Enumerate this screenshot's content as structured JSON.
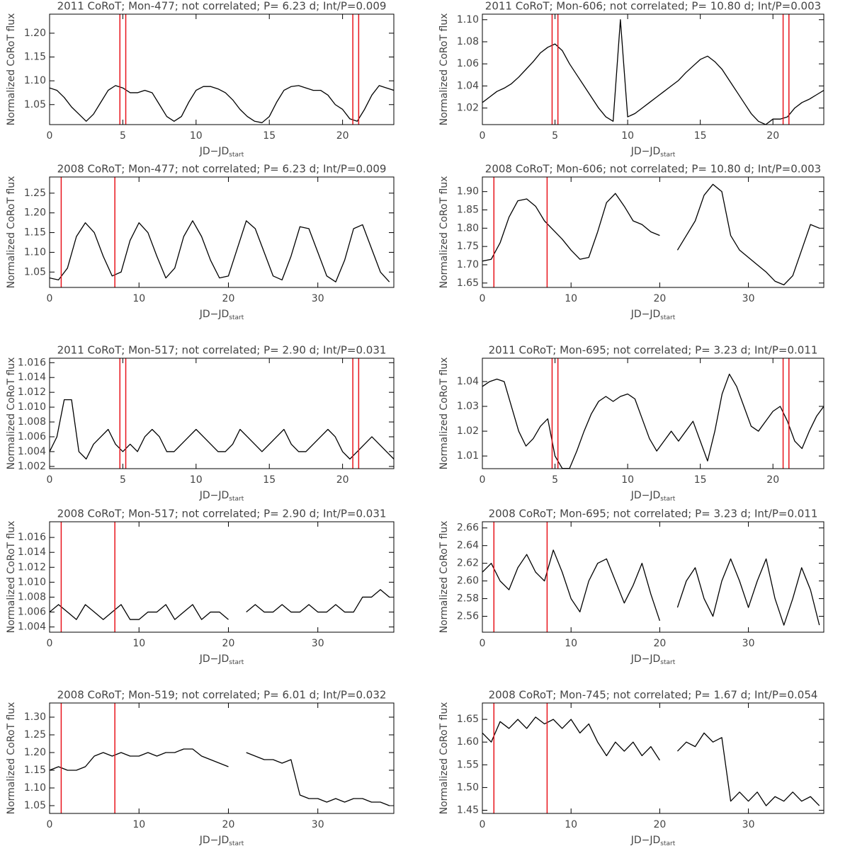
{
  "chart_data": [
    {
      "type": "line",
      "title": "2011 CoRoT; Mon-477; not correlated; P= 6.23 d; Int/P=0.009",
      "xlabel": "JD−JD",
      "xlabel_sub": "start",
      "ylabel": "Normalized CoRoT flux",
      "xlim": [
        0,
        23.5
      ],
      "ylim": [
        1.008,
        1.24
      ],
      "xticks": [
        0,
        5,
        10,
        15,
        20
      ],
      "yticks": [
        1.05,
        {
          "value": 1.1,
          "label": "1.10"
        },
        1.15,
        {
          "value": 1.2,
          "label": "1.20"
        }
      ],
      "vlines": [
        4.8,
        5.2,
        20.7,
        21.1
      ],
      "vline_color": "#e8141c",
      "color": "#000000",
      "x": [
        0,
        0.5,
        1,
        1.5,
        2,
        2.5,
        3,
        3.5,
        4,
        4.5,
        5,
        5.5,
        6,
        6.5,
        7,
        7.5,
        8,
        8.5,
        9,
        9.5,
        10,
        10.5,
        11,
        11.5,
        12,
        12.5,
        13,
        13.5,
        14,
        14.5,
        15,
        15.5,
        16,
        16.5,
        17,
        17.5,
        18,
        18.5,
        19,
        19.5,
        20,
        20.5,
        21,
        21.5,
        22,
        22.5,
        23,
        23.5
      ],
      "values": [
        1.085,
        1.08,
        1.065,
        1.045,
        1.03,
        1.015,
        1.03,
        1.055,
        1.08,
        1.09,
        1.085,
        1.075,
        1.075,
        1.08,
        1.075,
        1.05,
        1.025,
        1.015,
        1.025,
        1.055,
        1.08,
        1.088,
        1.088,
        1.083,
        1.075,
        1.06,
        1.04,
        1.025,
        1.015,
        1.012,
        1.025,
        1.055,
        1.08,
        1.088,
        1.09,
        1.085,
        1.08,
        1.08,
        1.07,
        1.05,
        1.04,
        1.02,
        1.015,
        1.04,
        1.07,
        1.09,
        1.085,
        1.08
      ]
    },
    {
      "type": "line",
      "title": "2011 CoRoT; Mon-606; not correlated; P= 10.80 d; Int/P=0.003",
      "xlabel": "JD−JD",
      "xlabel_sub": "start",
      "ylabel": "Normalized CoRoT flux",
      "xlim": [
        0,
        23.5
      ],
      "ylim": [
        1.005,
        1.105
      ],
      "xticks": [
        0,
        5,
        10,
        15,
        20
      ],
      "yticks": [
        1.02,
        1.04,
        1.06,
        1.08,
        {
          "value": 1.1,
          "label": "1.10"
        }
      ],
      "vlines": [
        4.8,
        5.2,
        20.7,
        21.1
      ],
      "vline_color": "#e8141c",
      "color": "#000000",
      "x": [
        0,
        0.5,
        1,
        1.5,
        2,
        2.5,
        3,
        3.5,
        4,
        4.5,
        5,
        5.5,
        6,
        6.5,
        7,
        7.5,
        8,
        8.5,
        9,
        9.5,
        10,
        10.5,
        11,
        11.5,
        12,
        12.5,
        13,
        13.5,
        14,
        14.5,
        15,
        15.5,
        16,
        16.5,
        17,
        17.5,
        18,
        18.5,
        19,
        19.5,
        20,
        20.5,
        21,
        21.5,
        22,
        22.5,
        23,
        23.5
      ],
      "values": [
        1.025,
        1.03,
        1.035,
        1.038,
        1.042,
        1.048,
        1.055,
        1.062,
        1.07,
        1.075,
        1.078,
        1.072,
        1.06,
        1.05,
        1.04,
        1.03,
        1.02,
        1.012,
        1.008,
        1.1,
        1.012,
        1.015,
        1.02,
        1.025,
        1.03,
        1.035,
        1.04,
        1.045,
        1.052,
        1.058,
        1.064,
        1.067,
        1.062,
        1.055,
        1.045,
        1.035,
        1.025,
        1.015,
        1.008,
        1.005,
        1.01,
        1.01,
        1.012,
        1.02,
        1.025,
        1.028,
        1.032,
        1.036
      ]
    },
    {
      "type": "line",
      "title": "2008 CoRoT; Mon-477; not correlated; P= 6.23 d; Int/P=0.009",
      "xlabel": "JD−JD",
      "xlabel_sub": "start",
      "ylabel": "Normalized CoRoT flux",
      "xlim": [
        0,
        38.5
      ],
      "ylim": [
        1.011,
        1.291
      ],
      "xticks": [
        0,
        10,
        20,
        30
      ],
      "yticks": [
        1.05,
        {
          "value": 1.1,
          "label": "1.10"
        },
        1.15,
        {
          "value": 1.2,
          "label": "1.20"
        },
        1.25
      ],
      "vlines": [
        1.3,
        7.3
      ],
      "vline_color": "#e8141c",
      "color": "#000000",
      "x": [
        0,
        1,
        2,
        3,
        4,
        5,
        6,
        7,
        8,
        9,
        10,
        11,
        12,
        13,
        14,
        15,
        16,
        17,
        18,
        19,
        20,
        21,
        22,
        23,
        24,
        25,
        26,
        27,
        28,
        29,
        30,
        31,
        32,
        33,
        34,
        35,
        36,
        37,
        38
      ],
      "values": [
        1.035,
        1.03,
        1.06,
        1.14,
        1.175,
        1.15,
        1.09,
        1.04,
        1.05,
        1.13,
        1.175,
        1.15,
        1.09,
        1.035,
        1.06,
        1.14,
        1.18,
        1.14,
        1.08,
        1.035,
        1.04,
        1.11,
        1.18,
        1.16,
        1.1,
        1.04,
        1.03,
        1.09,
        1.165,
        1.16,
        1.1,
        1.04,
        1.025,
        1.08,
        1.16,
        1.17,
        1.11,
        1.05,
        1.025
      ]
    },
    {
      "type": "line",
      "title": "2008 CoRoT; Mon-606; not correlated; P= 10.80 d; Int/P=0.003",
      "xlabel": "JD−JD",
      "xlabel_sub": "start",
      "ylabel": "Normalized CoRoT flux",
      "xlim": [
        0,
        38.5
      ],
      "ylim": [
        1.638,
        1.94
      ],
      "xticks": [
        0,
        10,
        20,
        30
      ],
      "yticks": [
        1.65,
        {
          "value": 1.7,
          "label": "1.70"
        },
        1.75,
        {
          "value": 1.8,
          "label": "1.80"
        },
        1.85,
        {
          "value": 1.9,
          "label": "1.90"
        }
      ],
      "vlines": [
        1.3,
        7.3
      ],
      "vline_color": "#e8141c",
      "color": "#000000",
      "x": [
        0,
        1,
        2,
        3,
        4,
        5,
        6,
        7,
        8,
        9,
        10,
        11,
        12,
        13,
        14,
        15,
        16,
        17,
        18,
        19,
        20,
        21,
        22,
        23,
        24,
        25,
        26,
        27,
        28,
        29,
        30,
        31,
        32,
        33,
        34,
        35,
        36,
        37,
        38
      ],
      "values": [
        1.71,
        1.715,
        1.76,
        1.83,
        1.875,
        1.88,
        1.86,
        1.82,
        1.795,
        1.77,
        1.74,
        1.715,
        1.72,
        1.79,
        1.87,
        1.895,
        1.86,
        1.82,
        1.81,
        1.79,
        1.78,
        null,
        1.74,
        1.78,
        1.82,
        1.89,
        1.92,
        1.9,
        1.78,
        1.74,
        1.72,
        1.7,
        1.68,
        1.655,
        1.645,
        1.67,
        1.74,
        1.81,
        1.8
      ]
    },
    {
      "type": "line",
      "title": "2011 CoRoT; Mon-517; not correlated; P= 2.90 d; Int/P=0.031",
      "xlabel": "JD−JD",
      "xlabel_sub": "start",
      "ylabel": "Normalized CoRoT flux",
      "xlim": [
        0,
        23.5
      ],
      "ylim": [
        1.0017,
        1.0166
      ],
      "xticks": [
        0,
        5,
        10,
        15,
        20
      ],
      "yticks": [
        1.002,
        1.004,
        1.006,
        1.008,
        {
          "value": 1.01,
          "label": "1.010"
        },
        1.012,
        1.014,
        1.016
      ],
      "vlines": [
        4.8,
        5.2,
        20.7,
        21.1
      ],
      "vline_color": "#e8141c",
      "color": "#000000",
      "x": [
        0,
        0.5,
        1,
        1.5,
        2,
        2.5,
        3,
        3.5,
        4,
        4.5,
        5,
        5.5,
        6,
        6.5,
        7,
        7.5,
        8,
        8.5,
        9,
        9.5,
        10,
        10.5,
        11,
        11.5,
        12,
        12.5,
        13,
        13.5,
        14,
        14.5,
        15,
        15.5,
        16,
        16.5,
        17,
        17.5,
        18,
        18.5,
        19,
        19.5,
        20,
        20.5,
        21,
        21.5,
        22,
        22.5,
        23,
        23.5
      ],
      "values": [
        1.004,
        1.006,
        1.011,
        1.011,
        1.004,
        1.003,
        1.005,
        1.006,
        1.007,
        1.005,
        1.004,
        1.005,
        1.004,
        1.006,
        1.007,
        1.006,
        1.004,
        1.004,
        1.005,
        1.006,
        1.007,
        1.006,
        1.005,
        1.004,
        1.004,
        1.005,
        1.007,
        1.006,
        1.005,
        1.004,
        1.005,
        1.006,
        1.007,
        1.005,
        1.004,
        1.004,
        1.005,
        1.006,
        1.007,
        1.006,
        1.004,
        1.003,
        1.004,
        1.005,
        1.006,
        1.005,
        1.004,
        1.003
      ]
    },
    {
      "type": "line",
      "title": "2011 CoRoT; Mon-695; not correlated; P= 3.23 d; Int/P=0.011",
      "xlabel": "JD−JD",
      "xlabel_sub": "start",
      "ylabel": "Normalized CoRoT flux",
      "xlim": [
        0,
        23.5
      ],
      "ylim": [
        1.0049,
        1.0494
      ],
      "xticks": [
        0,
        5,
        10,
        15,
        20
      ],
      "yticks": [
        1.01,
        1.02,
        1.03,
        1.04
      ],
      "vlines": [
        4.8,
        5.2,
        20.7,
        21.1
      ],
      "vline_color": "#e8141c",
      "color": "#000000",
      "x": [
        0,
        0.5,
        1,
        1.5,
        2,
        2.5,
        3,
        3.5,
        4,
        4.5,
        5,
        5.5,
        6,
        6.5,
        7,
        7.5,
        8,
        8.5,
        9,
        9.5,
        10,
        10.5,
        11,
        11.5,
        12,
        12.5,
        13,
        13.5,
        14,
        14.5,
        15,
        15.5,
        16,
        16.5,
        17,
        17.5,
        18,
        18.5,
        19,
        19.5,
        20,
        20.5,
        21,
        21.5,
        22,
        22.5,
        23,
        23.5
      ],
      "values": [
        1.038,
        1.04,
        1.041,
        1.04,
        1.03,
        1.02,
        1.014,
        1.017,
        1.022,
        1.025,
        1.01,
        1.005,
        1.005,
        1.012,
        1.02,
        1.027,
        1.032,
        1.034,
        1.032,
        1.034,
        1.035,
        1.033,
        1.025,
        1.017,
        1.012,
        1.016,
        1.02,
        1.016,
        1.02,
        1.024,
        1.016,
        1.008,
        1.02,
        1.035,
        1.043,
        1.038,
        1.03,
        1.022,
        1.02,
        1.024,
        1.028,
        1.03,
        1.024,
        1.016,
        1.013,
        1.02,
        1.026,
        1.03
      ]
    },
    {
      "type": "line",
      "title": "2008 CoRoT; Mon-517; not correlated; P= 2.90 d; Int/P=0.031",
      "xlabel": "JD−JD",
      "xlabel_sub": "start",
      "ylabel": "Normalized CoRoT flux",
      "xlim": [
        0,
        38.5
      ],
      "ylim": [
        1.0033,
        1.0181
      ],
      "xticks": [
        0,
        10,
        20,
        30
      ],
      "yticks": [
        1.004,
        1.006,
        1.008,
        {
          "value": 1.01,
          "label": "1.010"
        },
        1.012,
        1.014,
        1.016
      ],
      "vlines": [
        1.3,
        7.3
      ],
      "vline_color": "#e8141c",
      "color": "#000000",
      "x": [
        0,
        1,
        2,
        3,
        4,
        5,
        6,
        7,
        8,
        9,
        10,
        11,
        12,
        13,
        14,
        15,
        16,
        17,
        18,
        19,
        20,
        21,
        22,
        23,
        24,
        25,
        26,
        27,
        28,
        29,
        30,
        31,
        32,
        33,
        34,
        35,
        36,
        37,
        38
      ],
      "values": [
        1.006,
        1.007,
        1.006,
        1.005,
        1.007,
        1.006,
        1.005,
        1.006,
        1.007,
        1.005,
        1.005,
        1.006,
        1.006,
        1.007,
        1.005,
        1.006,
        1.007,
        1.005,
        1.006,
        1.006,
        1.005,
        null,
        1.006,
        1.007,
        1.006,
        1.006,
        1.007,
        1.006,
        1.006,
        1.007,
        1.006,
        1.006,
        1.007,
        1.006,
        1.006,
        1.008,
        1.008,
        1.009,
        1.008
      ]
    },
    {
      "type": "line",
      "title": "2008 CoRoT; Mon-695; not correlated; P= 3.23 d; Int/P=0.011",
      "xlabel": "JD−JD",
      "xlabel_sub": "start",
      "ylabel": "Normalized CoRoT flux",
      "xlim": [
        0,
        38.5
      ],
      "ylim": [
        2.542,
        2.667
      ],
      "xticks": [
        0,
        10,
        20,
        30
      ],
      "yticks": [
        2.56,
        2.58,
        {
          "value": 2.6,
          "label": "2.60"
        },
        2.62,
        2.64,
        2.66
      ],
      "vlines": [
        1.3,
        7.3
      ],
      "vline_color": "#e8141c",
      "color": "#000000",
      "x": [
        0,
        1,
        2,
        3,
        4,
        5,
        6,
        7,
        8,
        9,
        10,
        11,
        12,
        13,
        14,
        15,
        16,
        17,
        18,
        19,
        20,
        21,
        22,
        23,
        24,
        25,
        26,
        27,
        28,
        29,
        30,
        31,
        32,
        33,
        34,
        35,
        36,
        37,
        38
      ],
      "values": [
        2.61,
        2.62,
        2.6,
        2.59,
        2.615,
        2.63,
        2.61,
        2.6,
        2.635,
        2.61,
        2.58,
        2.565,
        2.6,
        2.62,
        2.625,
        2.6,
        2.575,
        2.595,
        2.62,
        2.585,
        2.555,
        null,
        2.57,
        2.6,
        2.615,
        2.58,
        2.56,
        2.6,
        2.625,
        2.6,
        2.57,
        2.6,
        2.625,
        2.58,
        2.55,
        2.58,
        2.615,
        2.59,
        2.55
      ]
    },
    {
      "type": "line",
      "title": "2008 CoRoT; Mon-519; not correlated; P= 6.01 d; Int/P=0.032",
      "xlabel": "JD−JD",
      "xlabel_sub": "start",
      "ylabel": "Normalized CoRoT flux",
      "xlim": [
        0,
        38.5
      ],
      "ylim": [
        1.028,
        1.34
      ],
      "xticks": [
        0,
        10,
        20,
        30
      ],
      "yticks": [
        1.05,
        {
          "value": 1.1,
          "label": "1.10"
        },
        1.15,
        {
          "value": 1.2,
          "label": "1.20"
        },
        1.25,
        {
          "value": 1.3,
          "label": "1.30"
        }
      ],
      "vlines": [
        1.3,
        7.3
      ],
      "vline_color": "#e8141c",
      "color": "#000000",
      "x": [
        0,
        1,
        2,
        3,
        4,
        5,
        6,
        7,
        8,
        9,
        10,
        11,
        12,
        13,
        14,
        15,
        16,
        17,
        18,
        19,
        20,
        21,
        22,
        23,
        24,
        25,
        26,
        27,
        28,
        29,
        30,
        31,
        32,
        33,
        34,
        35,
        36,
        37,
        38
      ],
      "values": [
        1.15,
        1.16,
        1.15,
        1.15,
        1.16,
        1.19,
        1.2,
        1.19,
        1.2,
        1.19,
        1.19,
        1.2,
        1.19,
        1.2,
        1.2,
        1.21,
        1.21,
        1.19,
        1.18,
        1.17,
        1.16,
        null,
        1.2,
        1.19,
        1.18,
        1.18,
        1.17,
        1.18,
        1.08,
        1.07,
        1.07,
        1.06,
        1.07,
        1.06,
        1.07,
        1.07,
        1.06,
        1.06,
        1.05
      ]
    },
    {
      "type": "line",
      "title": "2008 CoRoT; Mon-745; not correlated; P= 1.67 d; Int/P=0.054",
      "xlabel": "JD−JD",
      "xlabel_sub": "start",
      "ylabel": "Normalized CoRoT flux",
      "xlim": [
        0,
        38.5
      ],
      "ylim": [
        1.443,
        1.686
      ],
      "xticks": [
        0,
        10,
        20,
        30
      ],
      "yticks": [
        1.45,
        {
          "value": 1.5,
          "label": "1.50"
        },
        1.55,
        {
          "value": 1.6,
          "label": "1.60"
        },
        1.65
      ],
      "vlines": [
        1.3,
        7.3
      ],
      "vline_color": "#e8141c",
      "color": "#000000",
      "x": [
        0,
        1,
        2,
        3,
        4,
        5,
        6,
        7,
        8,
        9,
        10,
        11,
        12,
        13,
        14,
        15,
        16,
        17,
        18,
        19,
        20,
        21,
        22,
        23,
        24,
        25,
        26,
        27,
        28,
        29,
        30,
        31,
        32,
        33,
        34,
        35,
        36,
        37,
        38
      ],
      "values": [
        1.62,
        1.6,
        1.645,
        1.63,
        1.65,
        1.63,
        1.655,
        1.64,
        1.65,
        1.63,
        1.65,
        1.62,
        1.64,
        1.6,
        1.57,
        1.6,
        1.58,
        1.6,
        1.57,
        1.59,
        1.56,
        null,
        1.58,
        1.6,
        1.59,
        1.62,
        1.6,
        1.61,
        1.47,
        1.49,
        1.47,
        1.49,
        1.46,
        1.48,
        1.47,
        1.49,
        1.47,
        1.48,
        1.46
      ]
    }
  ]
}
